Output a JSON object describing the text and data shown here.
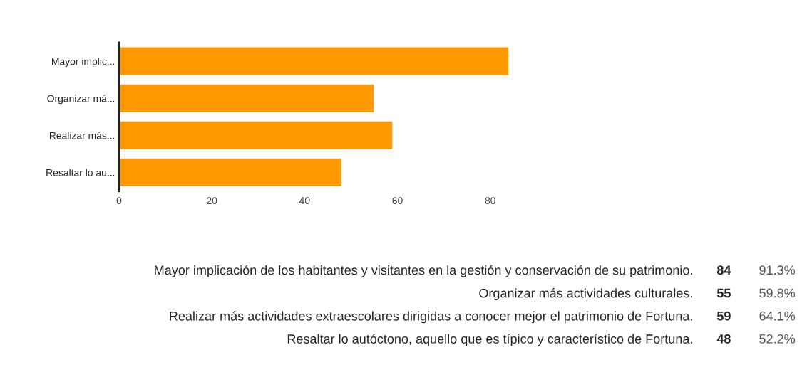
{
  "chart_data": {
    "type": "bar",
    "orientation": "horizontal",
    "categories": [
      "Mayor implic...",
      "Organizar má...",
      "Realizar más...",
      "Resaltar lo au..."
    ],
    "values": [
      84,
      55,
      59,
      48
    ],
    "color": "#ff9900",
    "xlim": [
      0,
      84
    ],
    "xticks": [
      0,
      20,
      40,
      60,
      80
    ],
    "grid": false,
    "legend": false,
    "annotations": [
      "Mayor implicación de los habitantes y visitantes en la gestión y conservación de su patrimonio.",
      "84",
      "91.3%",
      "Organizar más actividades culturales.",
      "55",
      "59.8%",
      "Realizar más actividades extraescolares dirigidas a conocer mejor el patrimonio de Fortuna.",
      "59",
      "64.1%",
      "Resaltar lo autóctono, aquello que es típico y característico de Fortuna.",
      "48",
      "52.2%"
    ]
  }
}
